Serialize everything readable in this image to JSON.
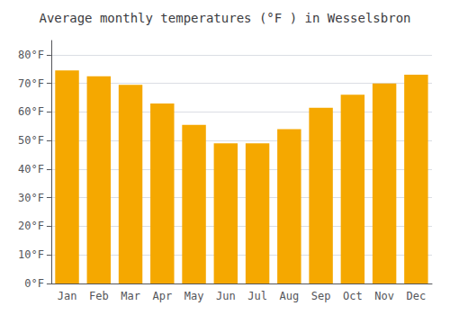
{
  "chart_data": {
    "type": "bar",
    "title": "Average monthly temperatures (°F ) in Wesselsbron",
    "categories": [
      "Jan",
      "Feb",
      "Mar",
      "Apr",
      "May",
      "Jun",
      "Jul",
      "Aug",
      "Sep",
      "Oct",
      "Nov",
      "Dec"
    ],
    "values": [
      74.5,
      72.5,
      69.5,
      63.0,
      55.5,
      49.0,
      49.0,
      54.0,
      61.5,
      66.0,
      70.0,
      73.0
    ],
    "color": "#F5A800",
    "ylim": [
      0,
      85
    ],
    "yticks": [
      {
        "value": 0,
        "label": "0°F"
      },
      {
        "value": 10,
        "label": "10°F"
      },
      {
        "value": 20,
        "label": "20°F"
      },
      {
        "value": 30,
        "label": "30°F"
      },
      {
        "value": 40,
        "label": "40°F"
      },
      {
        "value": 50,
        "label": "50°F"
      },
      {
        "value": 60,
        "label": "60°F"
      },
      {
        "value": 70,
        "label": "70°F"
      },
      {
        "value": 80,
        "label": "80°F"
      }
    ],
    "grid": true
  }
}
